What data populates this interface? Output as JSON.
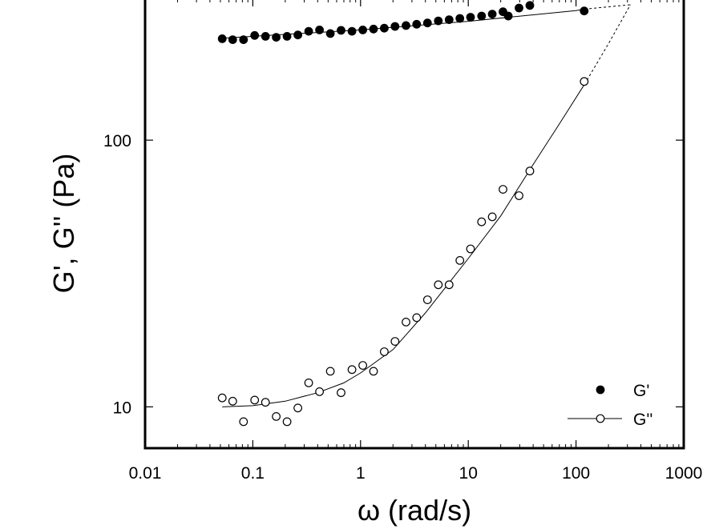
{
  "chart_data": {
    "type": "scatter",
    "xlabel": "ω (rad/s)",
    "ylabel": "G', G'' (Pa)",
    "xscale": "log",
    "yscale": "log",
    "xlim": [
      0.01,
      1000
    ],
    "ylim": [
      7,
      340
    ],
    "x_ticks": [
      {
        "value": 0.01,
        "label": "0.01"
      },
      {
        "value": 0.1,
        "label": "0.1"
      },
      {
        "value": 1,
        "label": "1"
      },
      {
        "value": 10,
        "label": "10"
      },
      {
        "value": 100,
        "label": "100"
      },
      {
        "value": 1000,
        "label": "1000"
      }
    ],
    "y_ticks": [
      {
        "value": 10,
        "label": "10"
      },
      {
        "value": 100,
        "label": "100"
      }
    ],
    "grid": false,
    "legend_position": "bottom-right",
    "series": [
      {
        "name": "G'",
        "marker": "filled-circle",
        "x": [
          0.052,
          0.065,
          0.082,
          0.104,
          0.131,
          0.165,
          0.208,
          0.262,
          0.33,
          0.416,
          0.524,
          0.66,
          0.832,
          1.05,
          1.32,
          1.66,
          2.09,
          2.64,
          3.32,
          4.18,
          5.27,
          6.64,
          8.36,
          10.5,
          13.3,
          16.7,
          21.0,
          23.5,
          29.6,
          37.3,
          119
        ],
        "y": [
          240,
          238,
          238,
          247,
          245,
          243,
          245,
          248,
          256,
          259,
          251,
          258,
          256,
          259,
          261,
          263,
          267,
          269,
          272,
          275,
          280,
          283,
          286,
          289,
          292,
          297,
          303,
          292,
          313,
          320,
          305
        ],
        "fit_line": {
          "x": [
            0.052,
            0.1,
            1,
            10,
            100,
            120,
            320
          ],
          "y": [
            241,
            245,
            259,
            279,
            306,
            310,
            322
          ]
        }
      },
      {
        "name": "G''",
        "marker": "open-circle",
        "x": [
          0.052,
          0.065,
          0.082,
          0.104,
          0.131,
          0.165,
          0.208,
          0.262,
          0.33,
          0.416,
          0.524,
          0.66,
          0.832,
          1.05,
          1.32,
          1.66,
          2.09,
          2.64,
          3.32,
          4.18,
          5.27,
          6.64,
          8.36,
          10.5,
          13.3,
          16.7,
          21.0,
          29.6,
          37.3,
          119
        ],
        "y": [
          10.8,
          10.5,
          8.8,
          10.6,
          10.4,
          9.2,
          8.8,
          9.9,
          12.3,
          11.4,
          13.6,
          11.3,
          13.8,
          14.3,
          13.6,
          16.1,
          17.6,
          20.8,
          21.6,
          25.2,
          28.7,
          28.7,
          35.4,
          39.1,
          49.4,
          51.6,
          65.4,
          61.9,
          76.6,
          166
        ],
        "fit_line": {
          "x": [
            0.052,
            0.1,
            0.2,
            0.4,
            0.7,
            1,
            2,
            4,
            7,
            10,
            20,
            40,
            70,
            120,
            200,
            320
          ],
          "y": [
            10.0,
            10.1,
            10.5,
            11.3,
            12.3,
            13.4,
            16.4,
            22.5,
            30,
            36,
            52,
            81,
            115,
            162,
            230,
            322
          ]
        }
      }
    ]
  }
}
